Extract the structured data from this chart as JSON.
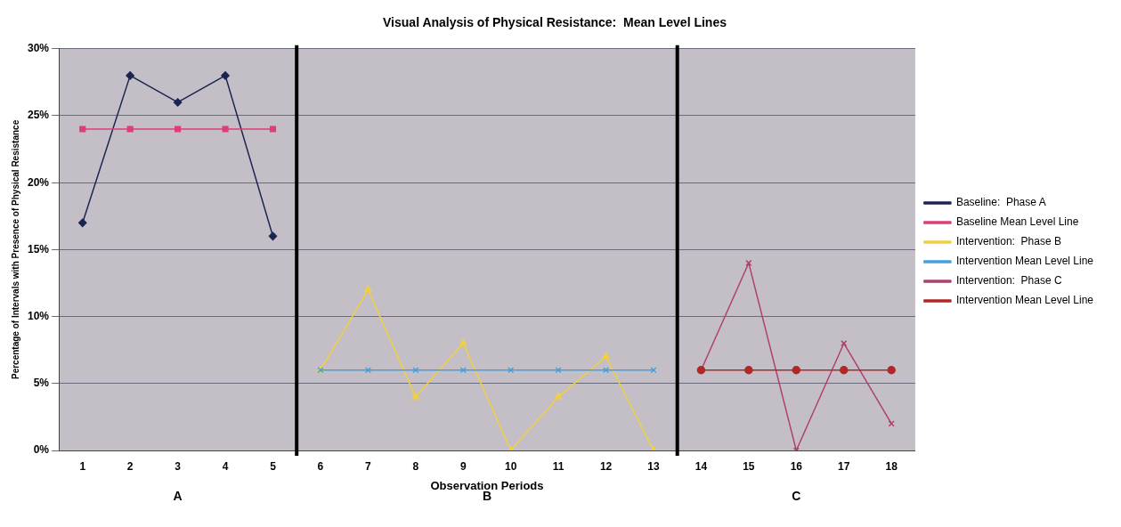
{
  "chart_data": {
    "type": "line",
    "title": "Visual Analysis of Physical Resistance:  Mean Level Lines",
    "xlabel": "Observation Periods",
    "ylabel": "Percentage of Intervals with Presence of Physical Resistance",
    "xlim": [
      0.5,
      18.5
    ],
    "xticks": [
      1,
      2,
      3,
      4,
      5,
      6,
      7,
      8,
      9,
      10,
      11,
      12,
      13,
      14,
      15,
      16,
      17,
      18
    ],
    "ylim": [
      0,
      30
    ],
    "yticks": [
      {
        "value": 0,
        "label": "0%"
      },
      {
        "value": 5,
        "label": "5%"
      },
      {
        "value": 10,
        "label": "10%"
      },
      {
        "value": 15,
        "label": "15%"
      },
      {
        "value": 20,
        "label": "20%"
      },
      {
        "value": 25,
        "label": "25%"
      },
      {
        "value": 30,
        "label": "30%"
      }
    ],
    "grid": "y",
    "legend": "right",
    "line_style": "solid",
    "series": [
      {
        "name": "Baseline:  Phase A",
        "color": "#1c2450",
        "marker": "diamond",
        "x": [
          1,
          2,
          3,
          4,
          5
        ],
        "values": [
          17,
          28,
          26,
          28,
          16
        ]
      },
      {
        "name": "Baseline Mean Level Line",
        "color": "#e03c78",
        "marker": "square",
        "x": [
          1,
          2,
          3,
          4,
          5
        ],
        "values": [
          24,
          24,
          24,
          24,
          24
        ]
      },
      {
        "name": "Intervention:  Phase B",
        "color": "#f0d040",
        "marker": "triangle",
        "x": [
          6,
          7,
          8,
          9,
          10,
          11,
          12,
          13
        ],
        "values": [
          6,
          12,
          4,
          8,
          0,
          4,
          7,
          0
        ]
      },
      {
        "name": "Intervention Mean Level Line",
        "color": "#40a0e0",
        "marker": "cross",
        "x": [
          6,
          7,
          8,
          9,
          10,
          11,
          12,
          13
        ],
        "values": [
          6,
          6,
          6,
          6,
          6,
          6,
          6,
          6
        ]
      },
      {
        "name": "Intervention:  Phase C",
        "color": "#b04070",
        "marker": "cross",
        "x": [
          14,
          15,
          16,
          17,
          18
        ],
        "values": [
          6,
          14,
          0,
          8,
          2
        ]
      },
      {
        "name": "Intervention Mean Level Line",
        "color": "#b02828",
        "marker": "circle",
        "x": [
          14,
          15,
          16,
          17,
          18
        ],
        "values": [
          6,
          6,
          6,
          6,
          6
        ]
      }
    ],
    "ref_lines": [
      {
        "axis": "x",
        "value": 5.5,
        "color": "#000000"
      },
      {
        "axis": "x",
        "value": 13.5,
        "color": "#000000"
      }
    ],
    "annotations": [
      "A",
      "B",
      "C"
    ]
  }
}
